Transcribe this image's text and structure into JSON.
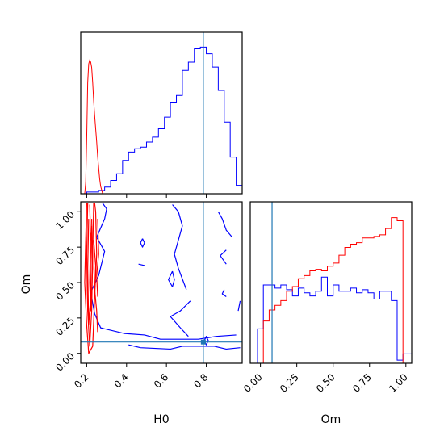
{
  "colors": {
    "series_a": "#0000ff",
    "series_b": "#ff0000",
    "truth": "#1f77b4",
    "axes": "#000000"
  },
  "chart_data": {
    "type": "corner",
    "parameters": [
      "H0",
      "Om"
    ],
    "truth": {
      "H0": 0.785,
      "Om": 0.08
    },
    "xlabels": [
      "H0",
      "Om"
    ],
    "ylabels": [
      "",
      "Om"
    ],
    "panels": [
      {
        "id": "H0-marginal",
        "type": "histogram",
        "xlim": [
          0.17,
          0.98
        ],
        "bin_edges": [
          0.17,
          0.2,
          0.23,
          0.26,
          0.29,
          0.32,
          0.35,
          0.38,
          0.41,
          0.44,
          0.47,
          0.5,
          0.53,
          0.56,
          0.59,
          0.62,
          0.65,
          0.68,
          0.71,
          0.74,
          0.77,
          0.8,
          0.83,
          0.86,
          0.89,
          0.92,
          0.95,
          0.98
        ],
        "series": [
          {
            "color": "blue",
            "counts": [
              0,
              1,
              1,
              2,
              4,
              8,
              12,
              20,
              25,
              27,
              28,
              31,
              34,
              39,
              46,
              55,
              59,
              74,
              79,
              87,
              88,
              84,
              76,
              62,
              43,
              22,
              5
            ]
          }
        ],
        "series_b_curve": {
          "color": "red",
          "x": [
            0.19,
            0.195,
            0.2,
            0.205,
            0.21,
            0.215,
            0.22,
            0.225,
            0.23,
            0.235,
            0.24,
            0.245,
            0.25,
            0.255,
            0.26,
            0.265,
            0.27,
            0.275,
            0.28
          ],
          "y": [
            0,
            6,
            30,
            60,
            70,
            72,
            71,
            68,
            60,
            50,
            42,
            35,
            28,
            20,
            14,
            8,
            4,
            2,
            0
          ]
        }
      },
      {
        "id": "H0-Om-joint",
        "type": "contour",
        "xlim": [
          0.17,
          0.98
        ],
        "ylim": [
          -0.07,
          1.07
        ],
        "xticks": [
          0.2,
          0.4,
          0.6,
          0.8
        ],
        "yticks": [
          0.0,
          0.25,
          0.5,
          0.75,
          1.0
        ],
        "series": [
          {
            "color": "blue",
            "contours": [
              [
                [
                  0.28,
                  1.06
                ],
                [
                  0.3,
                  1.02
                ],
                [
                  0.29,
                  0.95
                ],
                [
                  0.25,
                  0.82
                ],
                [
                  0.29,
                  0.72
                ],
                [
                  0.26,
                  0.55
                ],
                [
                  0.22,
                  0.43
                ],
                [
                  0.24,
                  0.28
                ],
                [
                  0.27,
                  0.18
                ],
                [
                  0.39,
                  0.14
                ],
                [
                  0.49,
                  0.13
                ],
                [
                  0.57,
                  0.1
                ],
                [
                  0.68,
                  0.1
                ],
                [
                  0.76,
                  0.1
                ],
                [
                  0.85,
                  0.12
                ],
                [
                  0.95,
                  0.13
                ]
              ],
              [
                [
                  0.41,
                  0.06
                ],
                [
                  0.47,
                  0.04
                ],
                [
                  0.62,
                  0.03
                ],
                [
                  0.68,
                  0.05
                ],
                [
                  0.84,
                  0.05
                ],
                [
                  0.9,
                  0.03
                ],
                [
                  0.97,
                  0.04
                ]
              ],
              [
                [
                  0.72,
                  0.37
                ],
                [
                  0.67,
                  0.3
                ],
                [
                  0.62,
                  0.26
                ],
                [
                  0.67,
                  0.18
                ],
                [
                  0.71,
                  0.12
                ]
              ],
              [
                [
                  0.63,
                  1.05
                ],
                [
                  0.66,
                  1.0
                ],
                [
                  0.68,
                  0.9
                ],
                [
                  0.66,
                  0.8
                ],
                [
                  0.64,
                  0.7
                ],
                [
                  0.66,
                  0.6
                ],
                [
                  0.7,
                  0.45
                ]
              ],
              [
                [
                  0.86,
                  1.0
                ],
                [
                  0.88,
                  0.95
                ],
                [
                  0.9,
                  0.87
                ],
                [
                  0.93,
                  0.82
                ]
              ],
              [
                [
                  0.9,
                  0.73
                ],
                [
                  0.87,
                  0.69
                ],
                [
                  0.9,
                  0.63
                ]
              ],
              [
                [
                  0.89,
                  0.45
                ],
                [
                  0.88,
                  0.42
                ],
                [
                  0.9,
                  0.4
                ]
              ],
              [
                [
                  0.96,
                  0.3
                ],
                [
                  0.97,
                  0.37
                ]
              ],
              [
                [
                  0.48,
                  0.81
                ],
                [
                  0.47,
                  0.78
                ],
                [
                  0.48,
                  0.75
                ],
                [
                  0.49,
                  0.78
                ],
                [
                  0.48,
                  0.81
                ]
              ],
              [
                [
                  0.46,
                  0.63
                ],
                [
                  0.49,
                  0.62
                ],
                [
                  0.46,
                  0.63
                ]
              ],
              [
                [
                  0.63,
                  0.58
                ],
                [
                  0.61,
                  0.52
                ],
                [
                  0.63,
                  0.47
                ],
                [
                  0.64,
                  0.52
                ],
                [
                  0.63,
                  0.58
                ]
              ],
              [
                [
                  0.79,
                  0.09
                ],
                [
                  0.8,
                  0.12
                ],
                [
                  0.81,
                  0.09
                ],
                [
                  0.8,
                  0.06
                ],
                [
                  0.79,
                  0.09
                ]
              ]
            ]
          },
          {
            "color": "red",
            "contours": [
              [
                [
                  0.2,
                  1.06
                ],
                [
                  0.195,
                  0.8
                ],
                [
                  0.19,
                  0.5
                ],
                [
                  0.2,
                  0.2
                ],
                [
                  0.21,
                  0.0
                ],
                [
                  0.23,
                  0.05
                ],
                [
                  0.24,
                  0.4
                ],
                [
                  0.25,
                  0.7
                ],
                [
                  0.245,
                  1.0
                ],
                [
                  0.24,
                  1.06
                ]
              ],
              [
                [
                  0.205,
                  1.06
                ],
                [
                  0.2,
                  0.7
                ],
                [
                  0.205,
                  0.3
                ],
                [
                  0.215,
                  0.05
                ],
                [
                  0.225,
                  0.3
                ],
                [
                  0.23,
                  0.7
                ],
                [
                  0.235,
                  1.06
                ]
              ],
              [
                [
                  0.21,
                  0.95
                ],
                [
                  0.205,
                  0.6
                ],
                [
                  0.21,
                  0.2
                ],
                [
                  0.22,
                  0.4
                ],
                [
                  0.225,
                  0.9
                ]
              ],
              [
                [
                  0.22,
                  0.85
                ],
                [
                  0.215,
                  0.5
                ],
                [
                  0.22,
                  0.3
                ],
                [
                  0.23,
                  0.6
                ],
                [
                  0.225,
                  0.95
                ]
              ],
              [
                [
                  0.235,
                  0.8
                ],
                [
                  0.245,
                  0.62
                ],
                [
                  0.24,
                  0.45
                ],
                [
                  0.25,
                  0.3
                ],
                [
                  0.255,
                  0.15
                ]
              ],
              [
                [
                  0.255,
                  0.95
                ],
                [
                  0.26,
                  0.7
                ],
                [
                  0.25,
                  0.55
                ],
                [
                  0.255,
                  0.4
                ]
              ],
              [
                [
                  0.215,
                  1.05
                ],
                [
                  0.22,
                  0.8
                ]
              ]
            ]
          }
        ]
      },
      {
        "id": "Om-marginal",
        "type": "histogram",
        "xlim": [
          -0.07,
          1.04
        ],
        "xticks": [
          0.0,
          0.25,
          0.5,
          0.75,
          1.0
        ],
        "bin_edges": [
          -0.07,
          -0.02,
          0.02,
          0.06,
          0.1,
          0.14,
          0.18,
          0.22,
          0.26,
          0.3,
          0.34,
          0.38,
          0.42,
          0.46,
          0.5,
          0.54,
          0.58,
          0.62,
          0.66,
          0.7,
          0.74,
          0.78,
          0.82,
          0.86,
          0.9,
          0.94,
          0.98,
          1.04
        ],
        "series": [
          {
            "color": "blue",
            "counts": [
              0,
              22,
              50,
              50,
              48,
              50,
              47,
              43,
              48,
              45,
              43,
              46,
              55,
              43,
              50,
              46,
              46,
              48,
              45,
              47,
              45,
              41,
              46,
              46,
              40,
              2,
              6
            ]
          },
          {
            "color": "red",
            "counts": [
              0,
              0,
              27,
              34,
              37,
              40,
              46,
              49,
              54,
              56,
              59,
              60,
              59,
              62,
              64,
              69,
              74,
              76,
              77,
              80,
              80,
              81,
              82,
              86,
              93,
              91,
              0
            ]
          }
        ]
      }
    ]
  }
}
